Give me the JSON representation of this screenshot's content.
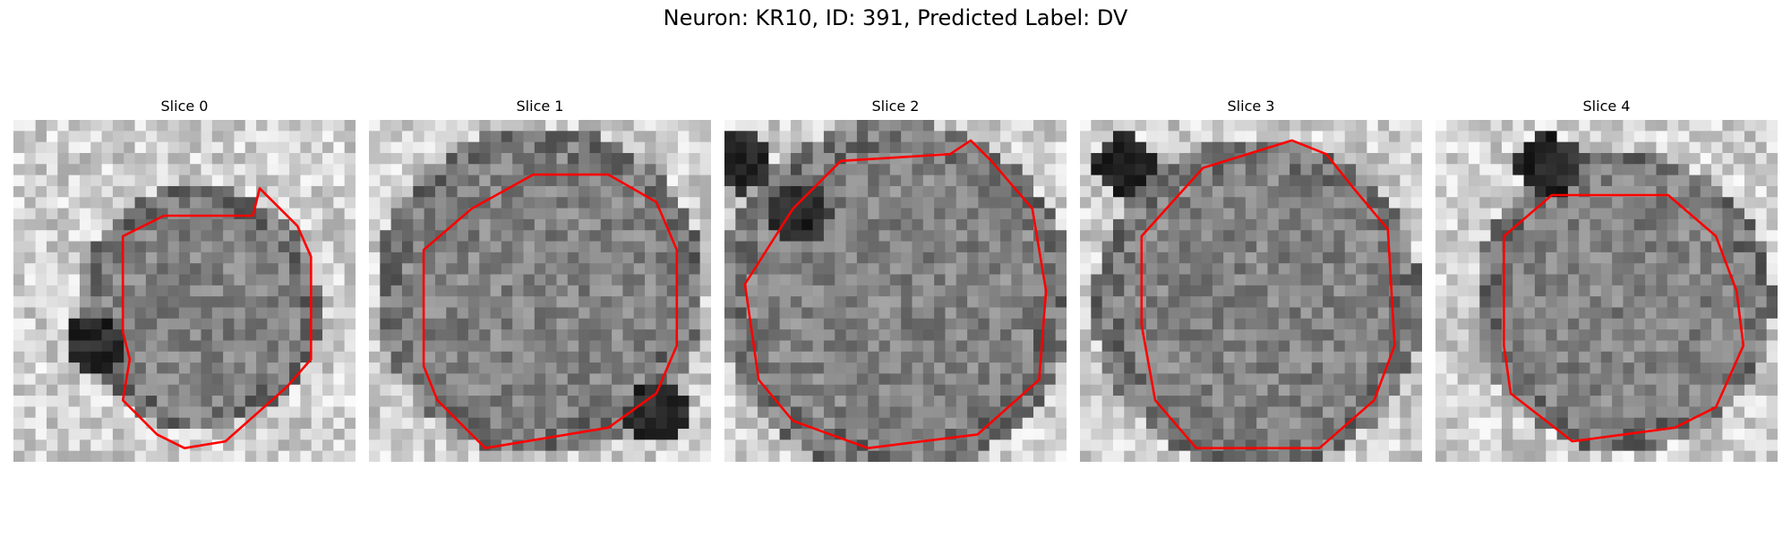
{
  "figure": {
    "suptitle": "Neuron: KR10, ID: 391, Predicted Label: DV"
  },
  "panels": [
    {
      "title": "Slice 0"
    },
    {
      "title": "Slice 1"
    },
    {
      "title": "Slice 2"
    },
    {
      "title": "Slice 3"
    },
    {
      "title": "Slice 4"
    }
  ],
  "style": {
    "contour_color": "#ff0000",
    "colormap": "grayscale"
  }
}
